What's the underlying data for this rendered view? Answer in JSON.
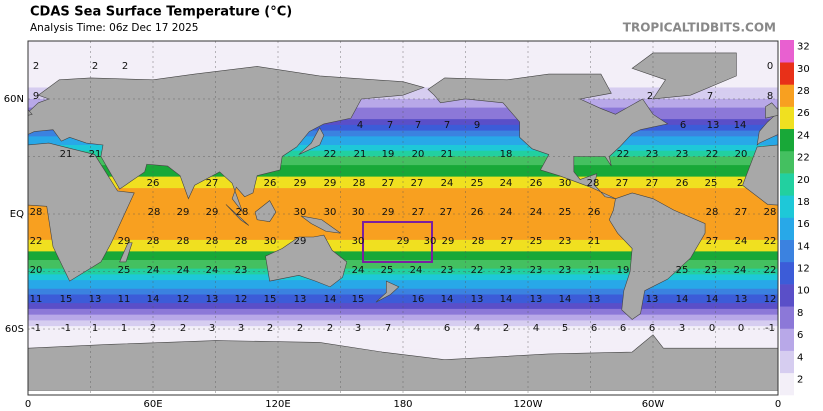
{
  "header": {
    "title": "CDAS Sea Surface Temperature (°C)",
    "subtitle": "Analysis Time: 06z Dec 17 2025",
    "source": "TROPICALTIDBITS.COM"
  },
  "axes": {
    "x_labels": [
      "0",
      "60E",
      "120E",
      "180",
      "120W",
      "60W",
      "0"
    ],
    "y_labels": [
      "60N",
      "EQ",
      "60S"
    ]
  },
  "colorbar": {
    "labels": [
      "2",
      "4",
      "6",
      "8",
      "10",
      "12",
      "14",
      "16",
      "18",
      "20",
      "22",
      "24",
      "26",
      "28",
      "30",
      "32"
    ],
    "colors": [
      "#f3eff8",
      "#d6cdf0",
      "#b8a8e8",
      "#8c78d8",
      "#5a4fc8",
      "#3c5cd8",
      "#3b82e0",
      "#28a8e8",
      "#1ec8d8",
      "#22d0a0",
      "#44c060",
      "#18a838",
      "#f0e020",
      "#f8a020",
      "#e83018",
      "#e860d0"
    ]
  },
  "temperature_labels": [
    [
      "2",
      "2",
      "2",
      "0"
    ],
    [
      "9",
      "2",
      "7",
      "8"
    ],
    [
      "4",
      "7",
      "7",
      "7",
      "9",
      "6",
      "13",
      "14"
    ],
    [
      "21",
      "21",
      "22",
      "21",
      "19",
      "20",
      "21",
      "18",
      "22",
      "23",
      "23",
      "22",
      "20"
    ],
    [
      "26",
      "27",
      "26",
      "29",
      "29",
      "28",
      "27",
      "27",
      "24",
      "25",
      "24",
      "26",
      "30",
      "28",
      "27",
      "27",
      "26",
      "25",
      "2"
    ],
    [
      "28",
      "28",
      "29",
      "29",
      "28",
      "30",
      "30",
      "30",
      "29",
      "27",
      "27",
      "26",
      "24",
      "24",
      "25",
      "26",
      "28",
      "27",
      "28"
    ],
    [
      "22",
      "29",
      "28",
      "28",
      "28",
      "28",
      "30",
      "29",
      "30",
      "29",
      "30",
      "29",
      "28",
      "27",
      "25",
      "23",
      "21",
      "27",
      "24",
      "22"
    ],
    [
      "20",
      "25",
      "24",
      "24",
      "24",
      "23",
      "24",
      "25",
      "24",
      "23",
      "22",
      "23",
      "23",
      "23",
      "21",
      "19",
      "25",
      "23",
      "24",
      "22"
    ],
    [
      "11",
      "15",
      "13",
      "11",
      "14",
      "12",
      "13",
      "12",
      "15",
      "13",
      "14",
      "15",
      "16",
      "14",
      "13",
      "14",
      "13",
      "14",
      "13",
      "13",
      "14",
      "14",
      "13",
      "12"
    ],
    [
      "-1",
      "-1",
      "1",
      "1",
      "2",
      "2",
      "3",
      "3",
      "2",
      "2",
      "2",
      "3",
      "7",
      "6",
      "4",
      "2",
      "4",
      "5",
      "6",
      "6",
      "6",
      "3",
      "0",
      "0",
      "-1"
    ]
  ]
}
